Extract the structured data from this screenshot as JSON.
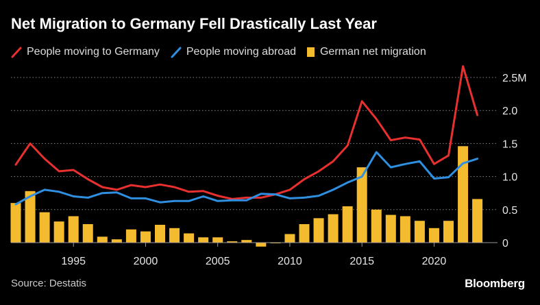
{
  "title": "Net Migration to Germany Fell Drastically Last Year",
  "source": "Source: Destatis",
  "brand": "Bloomberg",
  "chart_data": {
    "type": "bar+line",
    "title": "Net Migration to Germany Fell Drastically Last Year",
    "xlabel": "",
    "ylabel": "",
    "ylim": [
      -0.05,
      2.55
    ],
    "y_ticks": [
      0,
      0.5,
      1.0,
      1.5,
      2.0,
      2.5
    ],
    "y_tick_labels": [
      "0",
      "0.5",
      "1.0",
      "1.5",
      "2.0",
      "2.5M"
    ],
    "x_ticks": [
      1995,
      2000,
      2005,
      2010,
      2015,
      2020
    ],
    "x_tick_labels": [
      "1995",
      "2000",
      "2005",
      "2010",
      "2015",
      "2020"
    ],
    "grid": true,
    "legend_position": "top",
    "years": [
      1991,
      1992,
      1993,
      1994,
      1995,
      1996,
      1997,
      1998,
      1999,
      2000,
      2001,
      2002,
      2003,
      2004,
      2005,
      2006,
      2007,
      2008,
      2009,
      2010,
      2011,
      2012,
      2013,
      2014,
      2015,
      2016,
      2017,
      2018,
      2019,
      2020,
      2021,
      2022,
      2023
    ],
    "series": [
      {
        "name": "People moving to Germany",
        "kind": "line",
        "color": "#e8312f",
        "values": [
          1.18,
          1.5,
          1.27,
          1.08,
          1.1,
          0.96,
          0.84,
          0.8,
          0.87,
          0.84,
          0.88,
          0.84,
          0.77,
          0.78,
          0.71,
          0.66,
          0.68,
          0.68,
          0.73,
          0.8,
          0.96,
          1.08,
          1.23,
          1.47,
          2.14,
          1.87,
          1.55,
          1.59,
          1.56,
          1.19,
          1.32,
          2.67,
          1.93
        ]
      },
      {
        "name": "People moving abroad",
        "kind": "line",
        "color": "#2f8fe0",
        "values": [
          0.58,
          0.7,
          0.8,
          0.77,
          0.7,
          0.68,
          0.75,
          0.76,
          0.67,
          0.67,
          0.61,
          0.63,
          0.63,
          0.7,
          0.63,
          0.64,
          0.64,
          0.74,
          0.73,
          0.67,
          0.68,
          0.71,
          0.8,
          0.91,
          1.0,
          1.37,
          1.14,
          1.19,
          1.23,
          0.97,
          0.99,
          1.2,
          1.27
        ]
      },
      {
        "name": "German net migration",
        "kind": "bar",
        "color": "#f5bb2f",
        "values": [
          0.6,
          0.78,
          0.46,
          0.32,
          0.4,
          0.28,
          0.09,
          0.05,
          0.2,
          0.17,
          0.27,
          0.22,
          0.14,
          0.08,
          0.08,
          0.02,
          0.04,
          -0.06,
          -0.01,
          0.13,
          0.28,
          0.37,
          0.43,
          0.55,
          1.14,
          0.5,
          0.42,
          0.4,
          0.33,
          0.22,
          0.33,
          1.46,
          0.66
        ]
      }
    ]
  }
}
